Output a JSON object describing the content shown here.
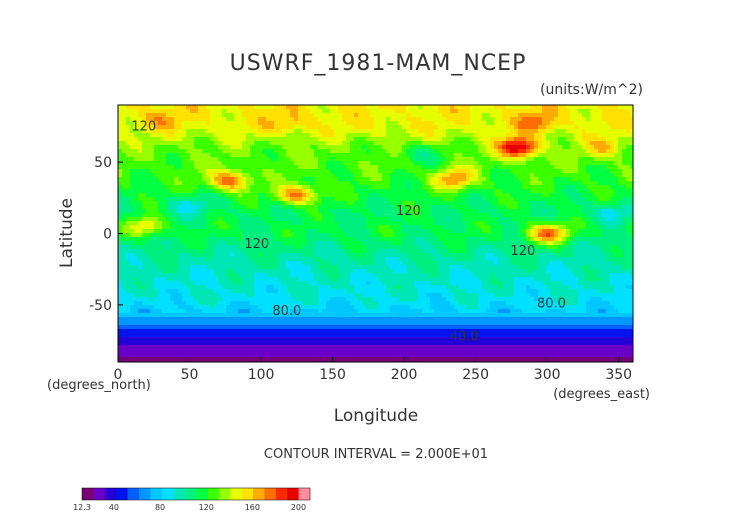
{
  "chart_data": {
    "type": "heatmap",
    "title": "USWRF_1981-MAM_NCEP",
    "units": "(units:W/m^2)",
    "xlabel": "Longitude",
    "ylabel": "Latitude",
    "x_unit_label": "(degrees_east)",
    "y_unit_label": "(degrees_north)",
    "xlim": [
      0,
      360
    ],
    "ylim": [
      -90,
      90
    ],
    "x_ticks": [
      "0",
      "50",
      "100",
      "150",
      "200",
      "250",
      "300",
      "350"
    ],
    "y_ticks": [
      "50",
      "0",
      "-50"
    ],
    "contour_interval_text": "CONTOUR INTERVAL = 2.000E+01",
    "contour_labels": [
      {
        "text": "120",
        "lon": 18,
        "lat": 72
      },
      {
        "text": "120",
        "lon": 203,
        "lat": 13
      },
      {
        "text": "120",
        "lon": 97,
        "lat": -10
      },
      {
        "text": "120",
        "lon": 283,
        "lat": -15
      },
      {
        "text": "80.0",
        "lon": 118,
        "lat": -57
      },
      {
        "text": "80.0",
        "lon": 303,
        "lat": -52
      },
      {
        "text": "40.0",
        "lon": 242,
        "lat": -75
      }
    ],
    "colorbar_labels": [
      "12.3",
      "40",
      "80",
      "120",
      "160",
      "200"
    ],
    "colorbar_levels": [
      12.3,
      20,
      30,
      40,
      50,
      60,
      70,
      80,
      90,
      100,
      110,
      120,
      130,
      140,
      150,
      160,
      170,
      180,
      190,
      200,
      210
    ],
    "colors": [
      "#7a007a",
      "#6a00c8",
      "#2400d8",
      "#0014f0",
      "#0060ff",
      "#0096ff",
      "#00c8ff",
      "#00e0ff",
      "#00e6b4",
      "#00f080",
      "#00ff40",
      "#3cff00",
      "#96ff00",
      "#e6ff00",
      "#ffe100",
      "#ffaa00",
      "#ff6e00",
      "#ff2a00",
      "#e60000",
      "#ff8ca0"
    ],
    "latitude_profile": [
      {
        "lat": 88,
        "value": 150
      },
      {
        "lat": 75,
        "value": 148
      },
      {
        "lat": 60,
        "value": 130
      },
      {
        "lat": 45,
        "value": 125
      },
      {
        "lat": 30,
        "value": 118
      },
      {
        "lat": 15,
        "value": 110
      },
      {
        "lat": 0,
        "value": 112
      },
      {
        "lat": -15,
        "value": 100
      },
      {
        "lat": -30,
        "value": 92
      },
      {
        "lat": -45,
        "value": 88
      },
      {
        "lat": -55,
        "value": 78
      },
      {
        "lat": -62,
        "value": 66
      },
      {
        "lat": -70,
        "value": 42
      },
      {
        "lat": -80,
        "value": 28
      },
      {
        "lat": -90,
        "value": 13
      }
    ],
    "maxima": [
      {
        "lon": 30,
        "lat": 80,
        "value": 165
      },
      {
        "lon": 120,
        "lat": 78,
        "value": 165
      },
      {
        "lon": 292,
        "lat": 78,
        "value": 175
      },
      {
        "lon": 280,
        "lat": 60,
        "value": 205
      },
      {
        "lon": 235,
        "lat": 38,
        "value": 170
      },
      {
        "lon": 125,
        "lat": 27,
        "value": 175
      },
      {
        "lon": 78,
        "lat": 37,
        "value": 180
      },
      {
        "lon": 300,
        "lat": 0,
        "value": 175
      },
      {
        "lon": 20,
        "lat": 5,
        "value": 150
      },
      {
        "lon": 340,
        "lat": 60,
        "value": 160
      }
    ],
    "minima": [
      {
        "lon": 50,
        "lat": 20,
        "value": 88
      },
      {
        "lon": 345,
        "lat": 15,
        "value": 85
      },
      {
        "lon": 210,
        "lat": 55,
        "value": 105
      },
      {
        "lon": 90,
        "lat": -25,
        "value": 95
      },
      {
        "lon": 268,
        "lat": -25,
        "value": 95
      }
    ]
  }
}
